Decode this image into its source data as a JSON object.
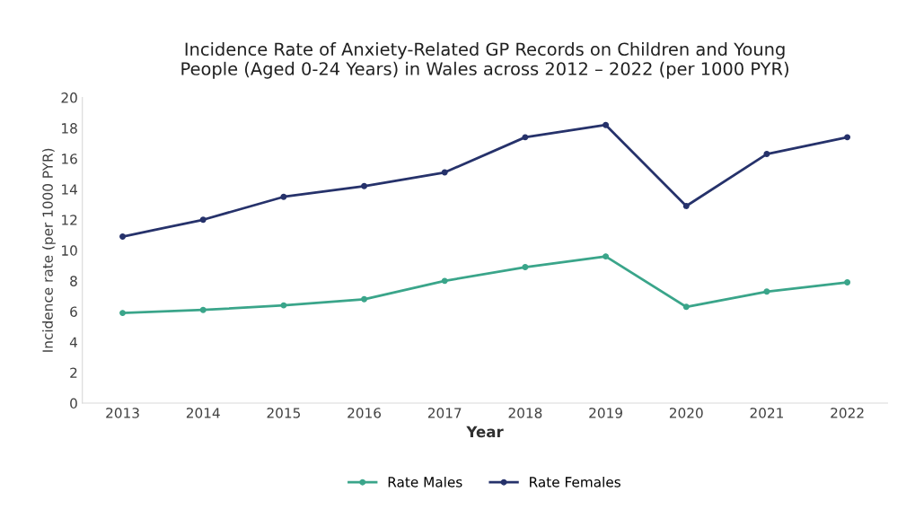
{
  "chart_data": {
    "type": "line",
    "title": "Incidence Rate of Anxiety-Related GP Records on Children and Young\nPeople (Aged 0-24 Years) in Wales across 2012 – 2022 (per 1000 PYR)",
    "xlabel": "Year",
    "ylabel": "Incidence rate (per 1000 PYR)",
    "categories": [
      "2013",
      "2014",
      "2015",
      "2016",
      "2017",
      "2018",
      "2019",
      "2020",
      "2021",
      "2022"
    ],
    "series": [
      {
        "name": "Rate Males",
        "color": "#3aa58a",
        "values": [
          5.9,
          6.1,
          6.4,
          6.8,
          8.0,
          8.9,
          9.6,
          6.3,
          7.3,
          7.9
        ]
      },
      {
        "name": "Rate Females",
        "color": "#26326b",
        "values": [
          10.9,
          12.0,
          13.5,
          14.2,
          15.1,
          17.4,
          18.2,
          12.9,
          16.3,
          17.4
        ]
      }
    ],
    "ylim": [
      0,
      20
    ],
    "yticks": [
      0,
      2,
      4,
      6,
      8,
      10,
      12,
      14,
      16,
      18,
      20
    ],
    "grid": false,
    "legend": "bottom",
    "marker": "circle",
    "line_style": "solid"
  }
}
